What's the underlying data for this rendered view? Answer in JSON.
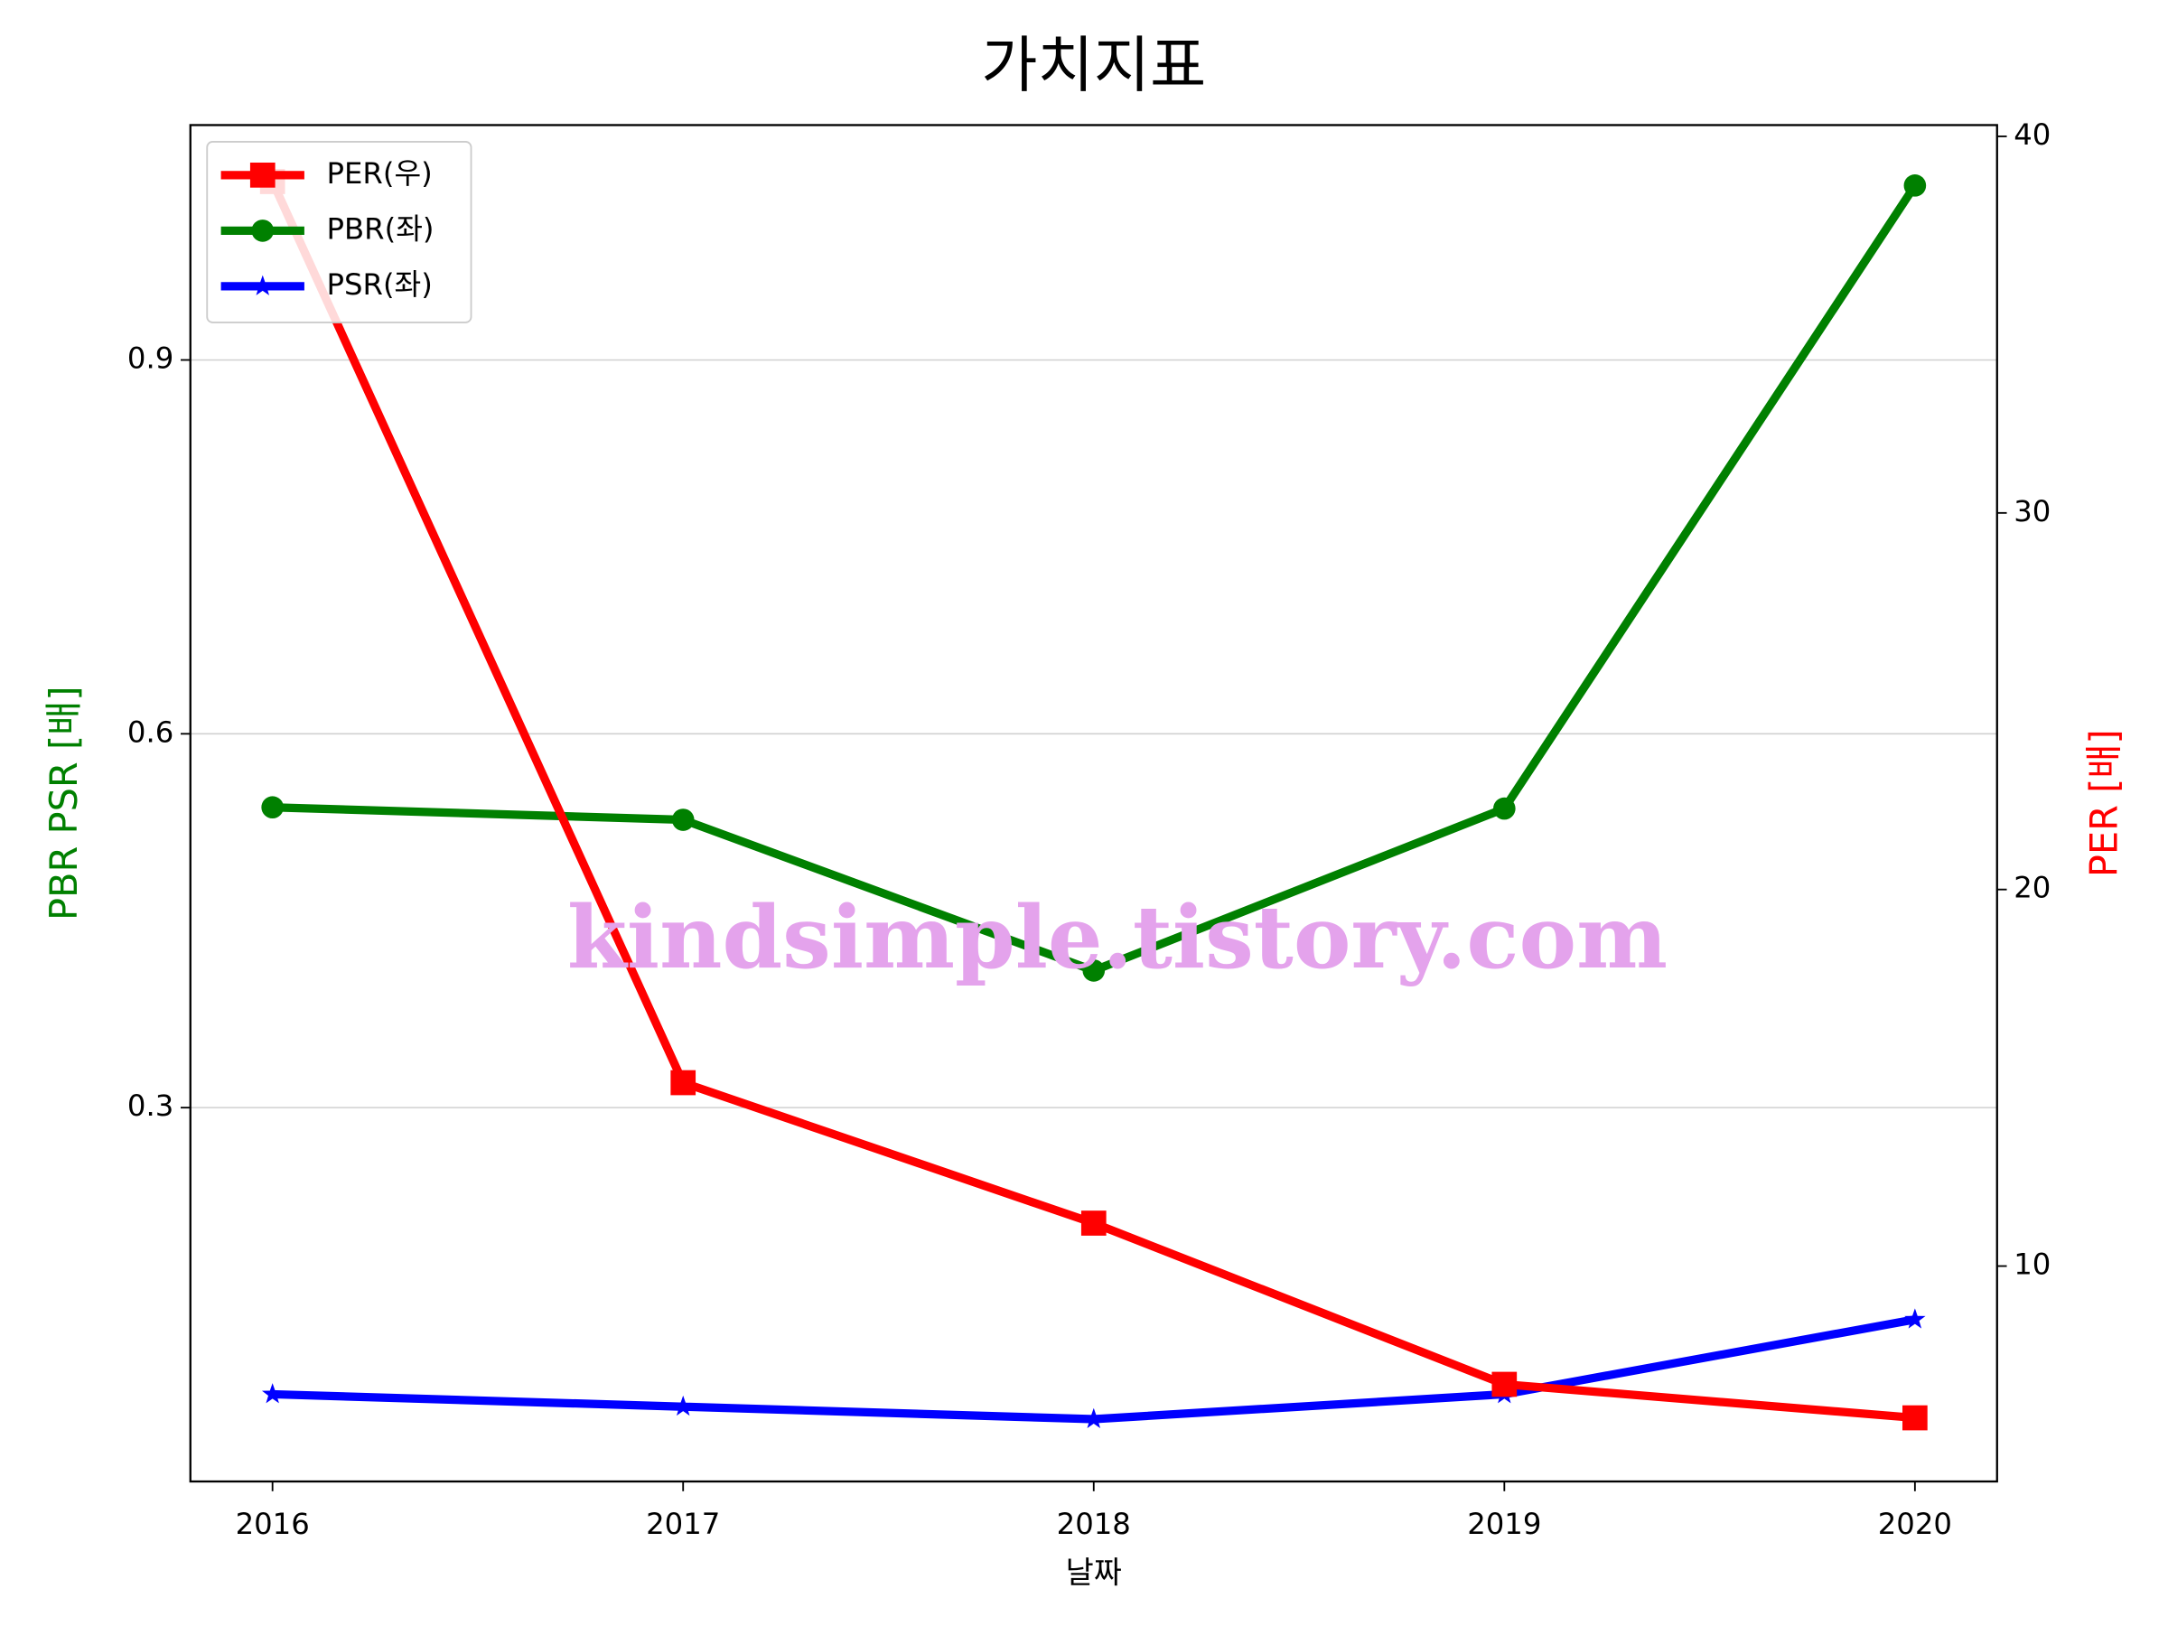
{
  "chart_data": {
    "type": "line",
    "title": "가치지표",
    "xlabel": "날짜",
    "ylabel": "PBR PSR [배]",
    "y2label": "PER [배]",
    "annotation": "kindsimple.tistory.com",
    "x": [
      2016,
      2017,
      2018,
      2019,
      2020
    ],
    "xlim": [
      2015.8,
      2020.2
    ],
    "xticks": [
      2016,
      2017,
      2018,
      2019,
      2020
    ],
    "ylim": [
      0,
      1.0885
    ],
    "yticks": [
      0.3,
      0.6,
      0.9
    ],
    "y2lim": [
      4.28,
      40.3
    ],
    "y2ticks": [
      10,
      20,
      30,
      40
    ],
    "grid": true,
    "legend": "upper left",
    "series": [
      {
        "name": "PER(우)",
        "color": "#ff0000",
        "marker": "square",
        "axis": "y2",
        "values": [
          38.8,
          14.87,
          11.14,
          6.86,
          5.97
        ]
      },
      {
        "name": "PBR(좌)",
        "color": "#008000",
        "marker": "circle",
        "values": [
          0.541,
          0.531,
          0.41,
          0.54,
          1.04
        ]
      },
      {
        "name": "PSR(좌)",
        "color": "#0000ff",
        "marker": "star",
        "values": [
          0.07,
          0.06,
          0.05,
          0.07,
          0.13
        ]
      }
    ]
  }
}
